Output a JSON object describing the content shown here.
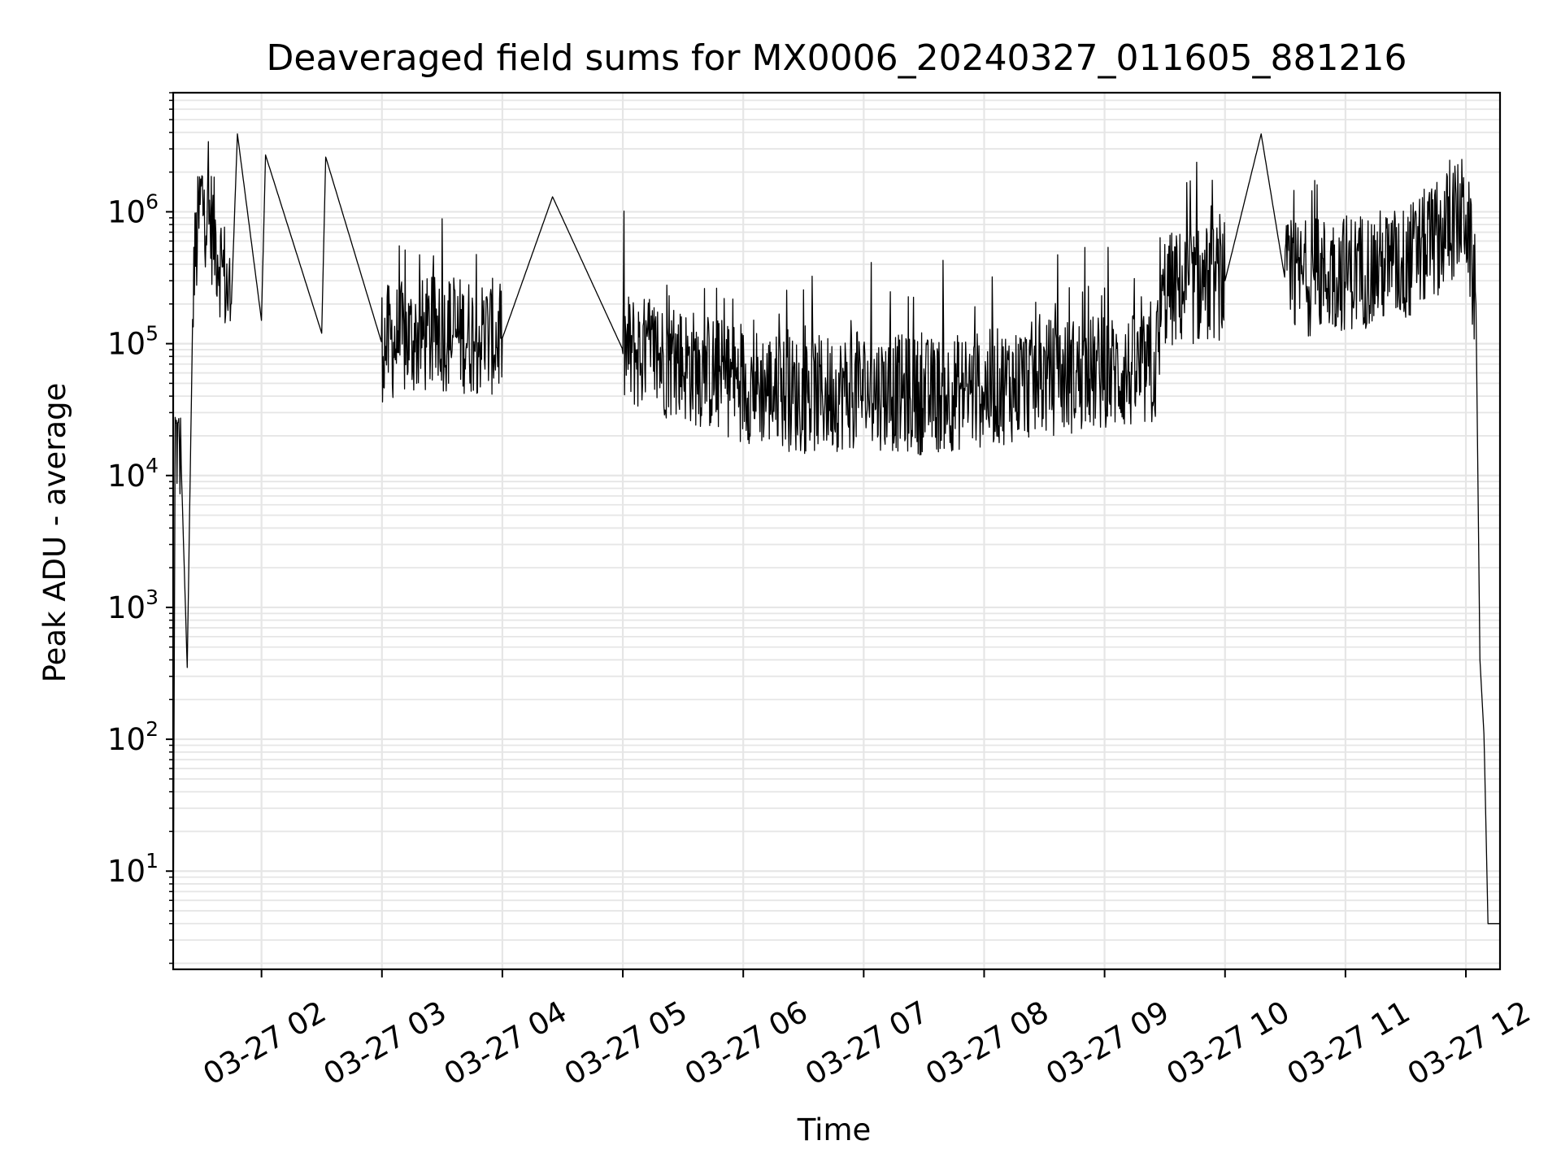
{
  "chart_data": {
    "type": "line",
    "title": "Deaveraged field sums for MX0006_20240327_011605_881216",
    "xlabel": "Time",
    "ylabel": "Peak ADU - average",
    "yscale": "log",
    "ylim": [
      1.8,
      8000000
    ],
    "xlim": [
      "2024-03-27 01:16",
      "2024-03-27 12:17"
    ],
    "grid": true,
    "colors": {
      "line": "#000000",
      "grid": "#e6e6e6",
      "axes": "#000000",
      "background": "#ffffff"
    },
    "x_ticks": [
      "03-27 02",
      "03-27 03",
      "03-27 04",
      "03-27 05",
      "03-27 06",
      "03-27 07",
      "03-27 08",
      "03-27 09",
      "03-27 10",
      "03-27 11",
      "03-27 12"
    ],
    "y_ticks": [
      {
        "base": "10",
        "exp": "1",
        "value": 10
      },
      {
        "base": "10",
        "exp": "2",
        "value": 100
      },
      {
        "base": "10",
        "exp": "3",
        "value": 1000
      },
      {
        "base": "10",
        "exp": "4",
        "value": 10000
      },
      {
        "base": "10",
        "exp": "5",
        "value": 100000
      },
      {
        "base": "10",
        "exp": "6",
        "value": 1000000
      }
    ],
    "series": [
      {
        "points": [
          [
            "2024-03-27 01:16",
            2
          ],
          [
            "2024-03-27 01:17",
            20000
          ],
          [
            "2024-03-27 01:20",
            12000
          ],
          [
            "2024-03-27 01:23",
            350
          ],
          [
            "2024-03-27 01:26",
            300000
          ],
          [
            "2024-03-27 01:30",
            1300000
          ],
          [
            "2024-03-27 01:35",
            800000
          ],
          [
            "2024-03-27 01:45",
            200000
          ],
          [
            "2024-03-27 01:48",
            3900000
          ],
          [
            "2024-03-27 02:00",
            150000
          ],
          [
            "2024-03-27 02:02",
            2700000
          ],
          [
            "2024-03-27 02:30",
            120000
          ],
          [
            "2024-03-27 02:32",
            2600000
          ],
          [
            "2024-03-27 03:00",
            100000
          ],
          [
            "2024-03-27 03:30",
            120000
          ],
          [
            "2024-03-27 04:00",
            110000
          ],
          [
            "2024-03-27 04:25",
            1300000
          ],
          [
            "2024-03-27 05:00",
            90000
          ],
          [
            "2024-03-27 05:30",
            70000
          ],
          [
            "2024-03-27 06:00",
            50000
          ],
          [
            "2024-03-27 06:30",
            40000
          ],
          [
            "2024-03-27 07:00",
            45000
          ],
          [
            "2024-03-27 07:30",
            40000
          ],
          [
            "2024-03-27 08:00",
            45000
          ],
          [
            "2024-03-27 08:30",
            55000
          ],
          [
            "2024-03-27 09:00",
            60000
          ],
          [
            "2024-03-27 09:25",
            60000
          ],
          [
            "2024-03-27 09:30",
            250000
          ],
          [
            "2024-03-27 10:00",
            300000
          ],
          [
            "2024-03-27 10:18",
            3900000
          ],
          [
            "2024-03-27 10:30",
            300000
          ],
          [
            "2024-03-27 11:00",
            350000
          ],
          [
            "2024-03-27 11:30",
            400000
          ],
          [
            "2024-03-27 12:00",
            1000000
          ],
          [
            "2024-03-27 12:05",
            200000
          ],
          [
            "2024-03-27 12:07",
            400
          ],
          [
            "2024-03-27 12:09",
            110
          ],
          [
            "2024-03-27 12:11",
            4
          ],
          [
            "2024-03-27 12:17",
            4
          ]
        ]
      }
    ]
  }
}
